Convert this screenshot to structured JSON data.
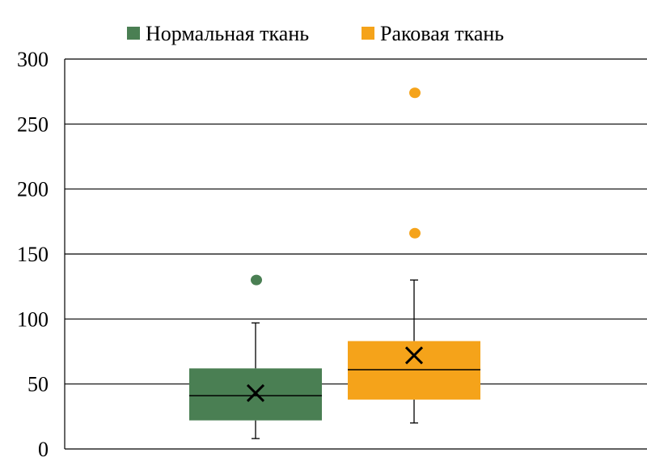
{
  "chart_data": {
    "type": "boxplot",
    "title": "",
    "xlabel": "",
    "ylabel": "",
    "ylim": [
      0,
      300
    ],
    "y_ticks": [
      0,
      50,
      100,
      150,
      200,
      250,
      300
    ],
    "grid": true,
    "legend_position": "top",
    "series": [
      {
        "name": "Нормальная ткань",
        "color": "#4a7f53",
        "min": 8,
        "q1": 22,
        "median": 41,
        "q3": 62,
        "max": 97,
        "mean": 43,
        "outliers": [
          130
        ]
      },
      {
        "name": "Раковая ткань",
        "color": "#f5a31a",
        "min": 20,
        "q1": 38,
        "median": 61,
        "q3": 83,
        "max": 130,
        "mean": 72,
        "outliers": [
          166,
          274
        ]
      }
    ]
  }
}
